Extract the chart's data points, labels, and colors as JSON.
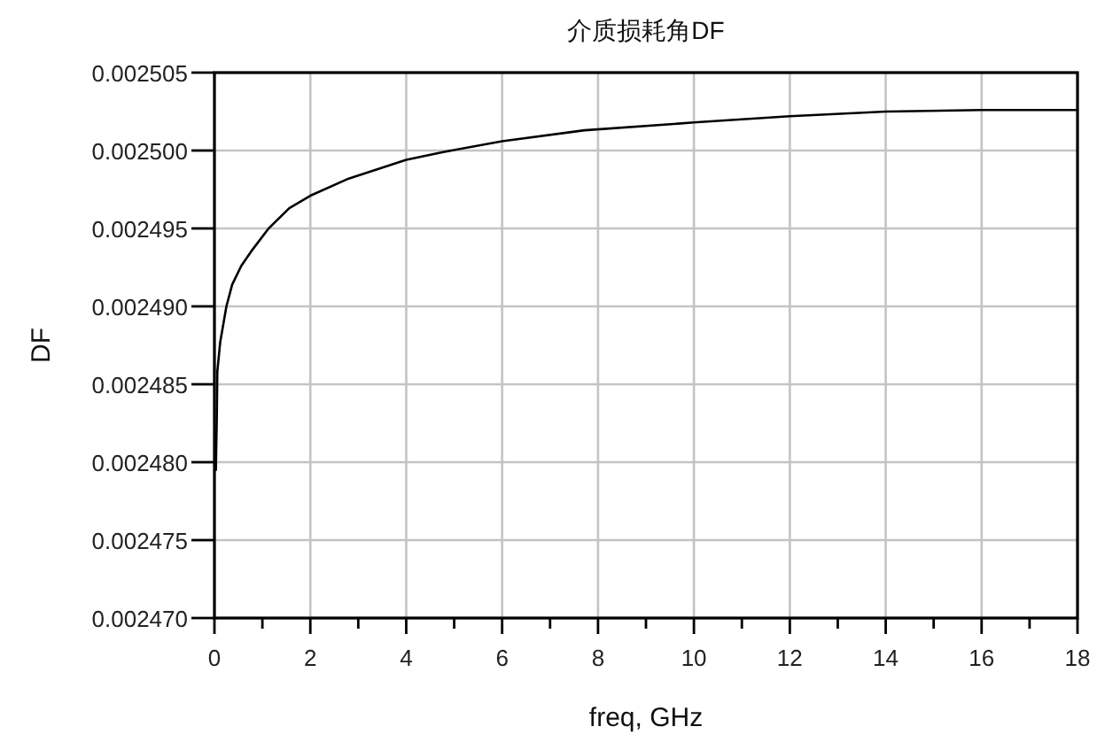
{
  "chart_data": {
    "type": "line",
    "title": "介质损耗角DF",
    "xlabel": "freq, GHz",
    "ylabel": "DF",
    "x": [
      0.03,
      0.05,
      0.06,
      0.12,
      0.25,
      0.37,
      0.56,
      0.76,
      1.13,
      1.56,
      2.0,
      2.8,
      4.0,
      4.77,
      6.0,
      7.72,
      10.0,
      12.0,
      14.0,
      16.0,
      18.0
    ],
    "values": [
      0.0024795,
      0.002483,
      0.0024858,
      0.0024877,
      0.00249,
      0.0024914,
      0.0024926,
      0.0024935,
      0.002495,
      0.0024963,
      0.0024971,
      0.0024982,
      0.0024994,
      0.0024999,
      0.0025006,
      0.0025013,
      0.0025018,
      0.0025022,
      0.0025025,
      0.0025026,
      0.0025026
    ],
    "color": "#000000",
    "line_style": "solid",
    "xlim": [
      0,
      18
    ],
    "ylim": [
      0.00247,
      0.002505
    ],
    "xticks": [
      0,
      {
        "value": 1,
        "label": null
      },
      2,
      {
        "value": 3,
        "label": null
      },
      4,
      {
        "value": 5,
        "label": null
      },
      6,
      {
        "value": 7,
        "label": null
      },
      8,
      {
        "value": 9,
        "label": null
      },
      10,
      {
        "value": 11,
        "label": null
      },
      12,
      {
        "value": 13,
        "label": null
      },
      14,
      {
        "value": 15,
        "label": null
      },
      16,
      {
        "value": 17,
        "label": null
      },
      18
    ],
    "yticks": [
      {
        "value": 0.00247,
        "label": "0.002470"
      },
      0.002475,
      {
        "value": 0.00248,
        "label": "0.002480"
      },
      0.002485,
      {
        "value": 0.00249,
        "label": "0.002490"
      },
      0.002495,
      {
        "value": 0.0025,
        "label": "0.002500"
      },
      0.002505
    ],
    "grid": true
  }
}
